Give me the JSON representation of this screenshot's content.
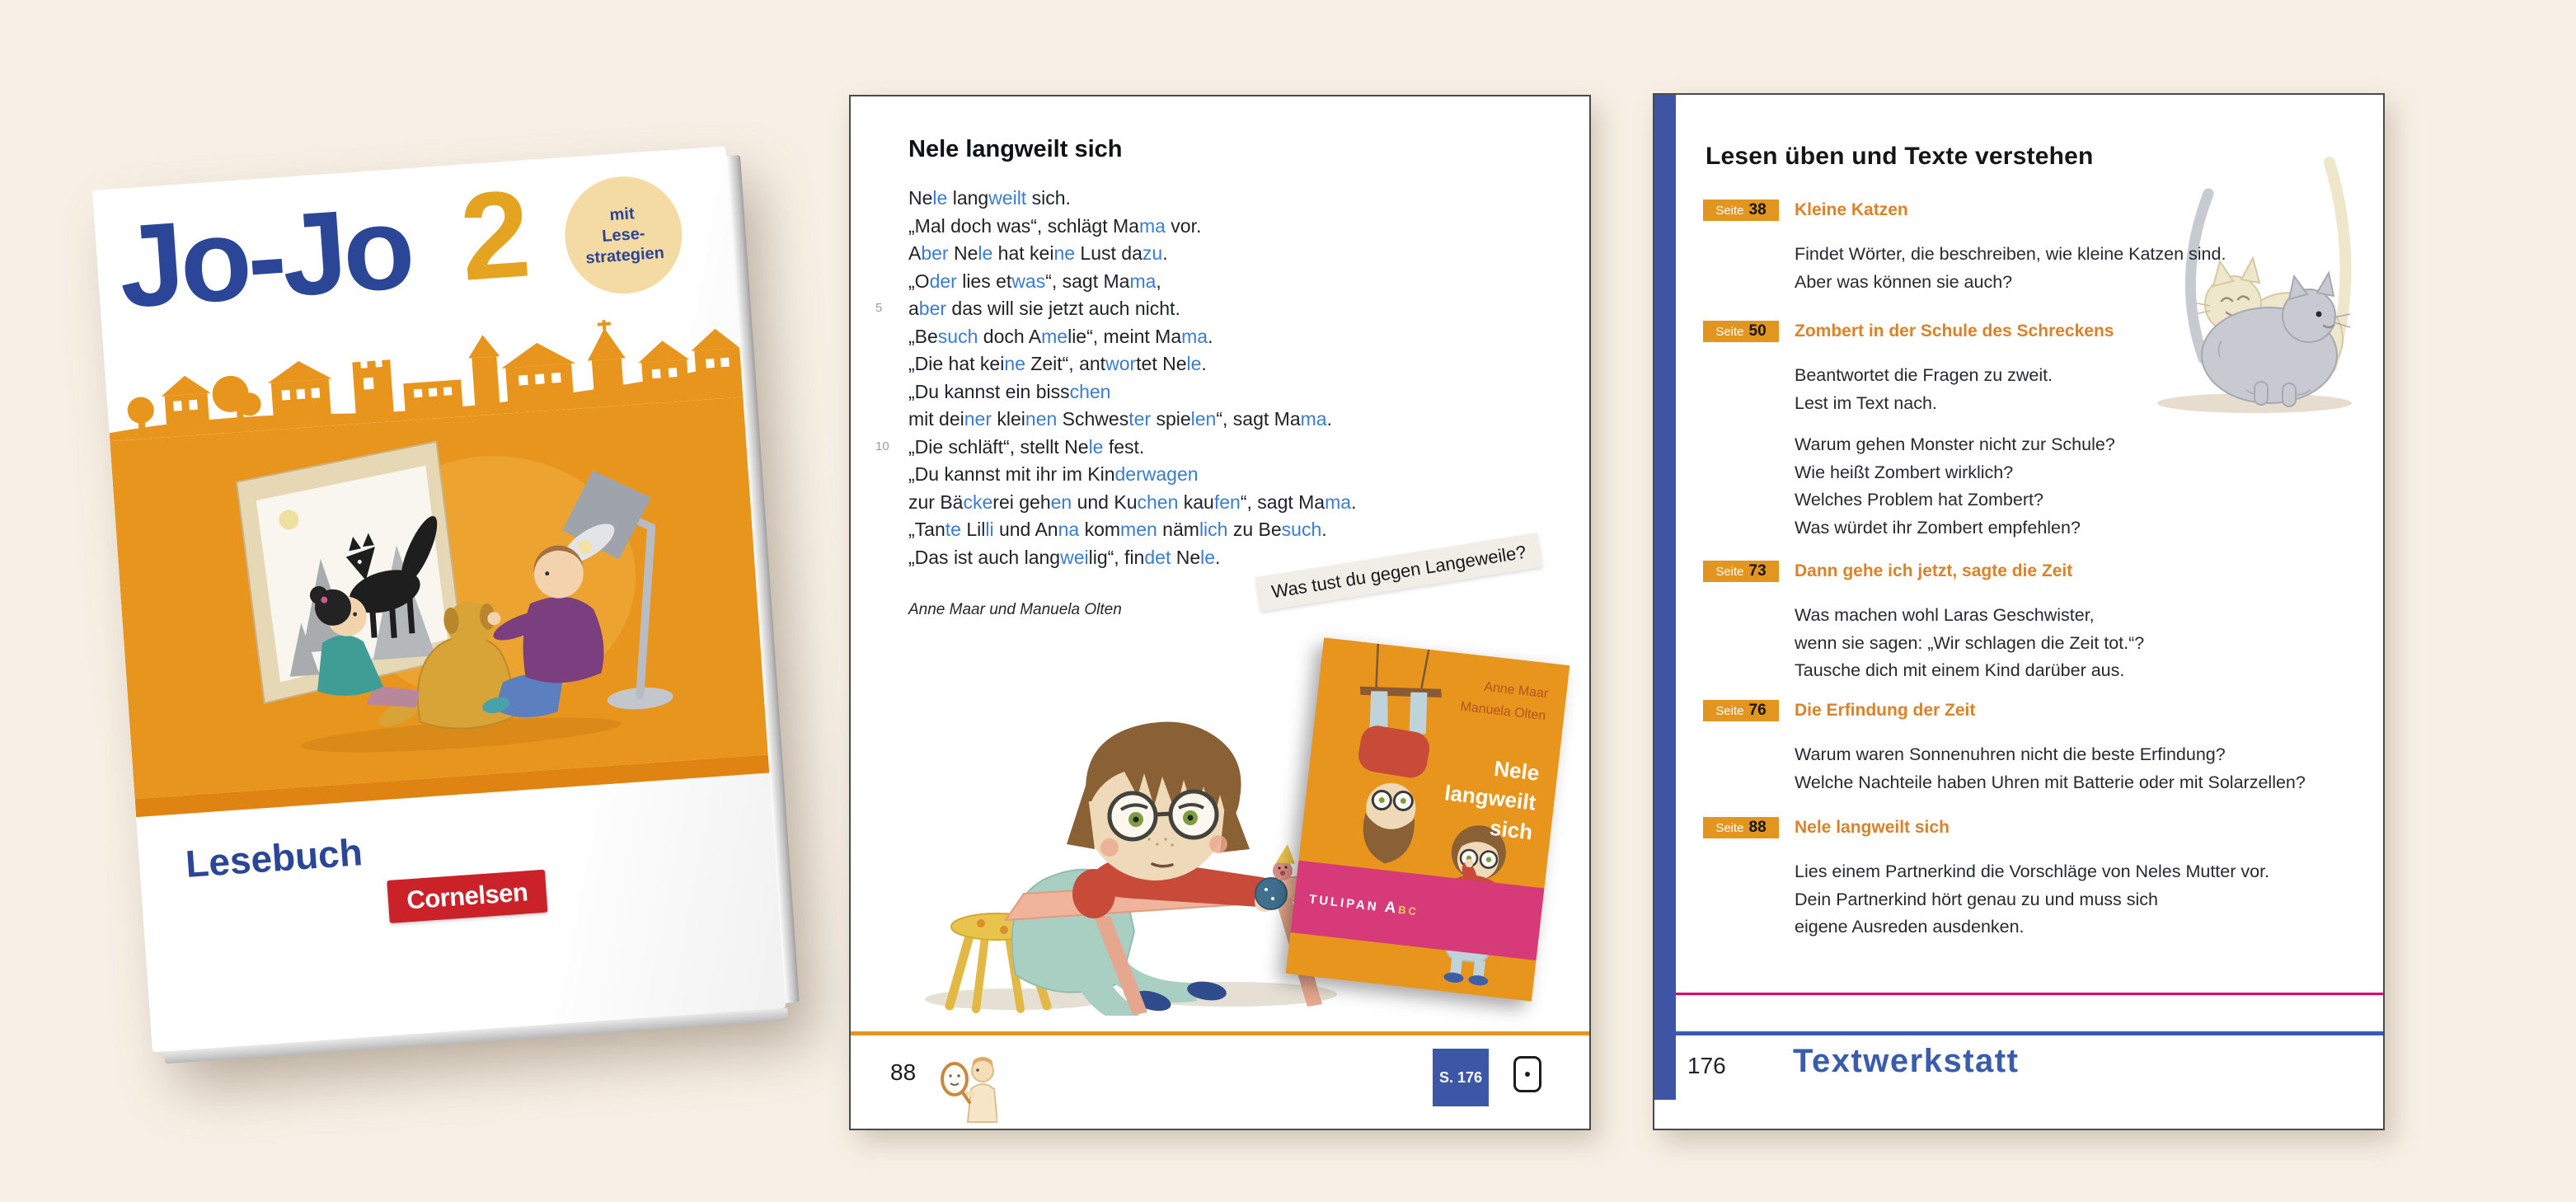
{
  "colors": {
    "background": "#F8F0E6",
    "cover_orange": "#E8951D",
    "cover_stripe": "#DF8312",
    "navy": "#2C4697",
    "gold": "#E5A41F",
    "cornelsen_red": "#CB2229",
    "story_blue": "#3B7CCE",
    "badge_orange": "#E2951F",
    "heading_orange": "#DB8229",
    "bar_blue": "#3E55A5",
    "magenta": "#DD0070",
    "footer_blue": "#3A5CAC",
    "pink_band": "#D63A78"
  },
  "icons": {
    "skyline": "town-skyline-illustration",
    "theater": "shadow-theater-illustration",
    "girl": "bored-girl-at-table-illustration",
    "cats": "two-cats-illustration",
    "mirror": "partner-mirror-icon",
    "note": "note-box-icon"
  },
  "cover": {
    "title": "Jo-Jo",
    "grade": "2",
    "badge_lines": [
      "mit",
      "Lese-",
      "strategien"
    ],
    "subtitle": "Lesebuch",
    "publisher": "Cornelsen"
  },
  "story_page": {
    "title": "Nele langweilt sich",
    "author": "Anne Maar und Manuela Olten",
    "question_label": "Was tust du gegen Langeweile?",
    "page_number": "88",
    "reference_label": "S. 176",
    "margin_numbers": [
      {
        "line": 5,
        "label": "5"
      },
      {
        "line": 10,
        "label": "10"
      }
    ],
    "lines": [
      {
        "segments": [
          {
            "t": "Ne",
            "b": 0
          },
          {
            "t": "le",
            "b": 1
          },
          {
            "t": " lang",
            "b": 0
          },
          {
            "t": "weilt",
            "b": 1
          },
          {
            "t": " sich.",
            "b": 0
          }
        ]
      },
      {
        "segments": [
          {
            "t": "„Mal doch was“, schlägt Ma",
            "b": 0
          },
          {
            "t": "ma",
            "b": 1
          },
          {
            "t": " vor.",
            "b": 0
          }
        ]
      },
      {
        "segments": [
          {
            "t": "A",
            "b": 0
          },
          {
            "t": "ber",
            "b": 1
          },
          {
            "t": " Ne",
            "b": 0
          },
          {
            "t": "le",
            "b": 1
          },
          {
            "t": " hat kei",
            "b": 0
          },
          {
            "t": "ne",
            "b": 1
          },
          {
            "t": " Lust da",
            "b": 0
          },
          {
            "t": "zu",
            "b": 1
          },
          {
            "t": ".",
            "b": 0
          }
        ]
      },
      {
        "segments": [
          {
            "t": "„O",
            "b": 0
          },
          {
            "t": "der",
            "b": 1
          },
          {
            "t": " lies et",
            "b": 0
          },
          {
            "t": "was",
            "b": 1
          },
          {
            "t": "“, sagt Ma",
            "b": 0
          },
          {
            "t": "ma",
            "b": 1
          },
          {
            "t": ",",
            "b": 0
          }
        ]
      },
      {
        "segments": [
          {
            "t": "a",
            "b": 0
          },
          {
            "t": "ber",
            "b": 1
          },
          {
            "t": " das will sie jetzt auch nicht.",
            "b": 0
          }
        ]
      },
      {
        "segments": [
          {
            "t": "„Be",
            "b": 0
          },
          {
            "t": "such",
            "b": 1
          },
          {
            "t": " doch A",
            "b": 0
          },
          {
            "t": "me",
            "b": 1
          },
          {
            "t": "lie“, meint Ma",
            "b": 0
          },
          {
            "t": "ma",
            "b": 1
          },
          {
            "t": ".",
            "b": 0
          }
        ]
      },
      {
        "segments": [
          {
            "t": "„Die hat kei",
            "b": 0
          },
          {
            "t": "ne",
            "b": 1
          },
          {
            "t": " Zeit“, ant",
            "b": 0
          },
          {
            "t": "wor",
            "b": 1
          },
          {
            "t": "tet Ne",
            "b": 0
          },
          {
            "t": "le",
            "b": 1
          },
          {
            "t": ".",
            "b": 0
          }
        ]
      },
      {
        "segments": [
          {
            "t": "„Du kannst ein biss",
            "b": 0
          },
          {
            "t": "chen",
            "b": 1
          }
        ]
      },
      {
        "segments": [
          {
            "t": "mit dei",
            "b": 0
          },
          {
            "t": "ner",
            "b": 1
          },
          {
            "t": " klei",
            "b": 0
          },
          {
            "t": "nen",
            "b": 1
          },
          {
            "t": " Schwes",
            "b": 0
          },
          {
            "t": "ter",
            "b": 1
          },
          {
            "t": " spie",
            "b": 0
          },
          {
            "t": "len",
            "b": 1
          },
          {
            "t": "“, sagt Ma",
            "b": 0
          },
          {
            "t": "ma",
            "b": 1
          },
          {
            "t": ".",
            "b": 0
          }
        ]
      },
      {
        "segments": [
          {
            "t": "„Die schläft“, stellt Ne",
            "b": 0
          },
          {
            "t": "le",
            "b": 1
          },
          {
            "t": " fest.",
            "b": 0
          }
        ]
      },
      {
        "segments": [
          {
            "t": "„Du kannst mit ihr im Kin",
            "b": 0
          },
          {
            "t": "derwagen",
            "b": 1
          }
        ]
      },
      {
        "segments": [
          {
            "t": "zur Bä",
            "b": 0
          },
          {
            "t": "cke",
            "b": 1
          },
          {
            "t": "rei geh",
            "b": 0
          },
          {
            "t": "en",
            "b": 1
          },
          {
            "t": " und Ku",
            "b": 0
          },
          {
            "t": "chen",
            "b": 1
          },
          {
            "t": " kau",
            "b": 0
          },
          {
            "t": "fen",
            "b": 1
          },
          {
            "t": "“, sagt Ma",
            "b": 0
          },
          {
            "t": "ma",
            "b": 1
          },
          {
            "t": ".",
            "b": 0
          }
        ]
      },
      {
        "segments": [
          {
            "t": "„Tan",
            "b": 0
          },
          {
            "t": "te",
            "b": 1
          },
          {
            "t": " Lil",
            "b": 0
          },
          {
            "t": "li",
            "b": 1
          },
          {
            "t": " und An",
            "b": 0
          },
          {
            "t": "na",
            "b": 1
          },
          {
            "t": " kom",
            "b": 0
          },
          {
            "t": "men",
            "b": 1
          },
          {
            "t": " näm",
            "b": 0
          },
          {
            "t": "lich",
            "b": 1
          },
          {
            "t": " zu Be",
            "b": 0
          },
          {
            "t": "such",
            "b": 1
          },
          {
            "t": ".",
            "b": 0
          }
        ]
      },
      {
        "segments": [
          {
            "t": "„Das ist auch lang",
            "b": 0
          },
          {
            "t": "wei",
            "b": 1
          },
          {
            "t": "lig“, fin",
            "b": 0
          },
          {
            "t": "det",
            "b": 1
          },
          {
            "t": " Ne",
            "b": 0
          },
          {
            "t": "le",
            "b": 1
          },
          {
            "t": ".",
            "b": 0
          }
        ]
      }
    ],
    "thumb_cover": {
      "authors": [
        "Anne Maar",
        "Manuela Olten"
      ],
      "title_lines": [
        "Nele",
        "langweilt",
        "sich"
      ],
      "logo_name": "TULIPAN",
      "logo_a": "A",
      "logo_rest": "BC"
    }
  },
  "toc_page": {
    "title": "Lesen üben und Texte verstehen",
    "seite_label": "Seite",
    "sections": [
      {
        "page": "38",
        "heading": "Kleine Katzen",
        "lines": [
          "Findet Wörter, die beschreiben, wie kleine Katzen sind.",
          "Aber was können sie auch?"
        ]
      },
      {
        "page": "50",
        "heading": "Zombert in der Schule des Schreckens",
        "lines": [
          "Beantwortet die Fragen zu zweit.",
          "Lest im Text nach.",
          "",
          "Warum gehen Monster nicht zur Schule?",
          "Wie heißt Zombert wirklich?",
          "Welches Problem hat Zombert?",
          "Was würdet ihr Zombert empfehlen?"
        ]
      },
      {
        "page": "73",
        "heading": "Dann gehe ich jetzt, sagte die Zeit",
        "lines": [
          "Was machen wohl Laras Geschwister,",
          "wenn sie sagen: „Wir schlagen die Zeit tot.“?",
          "Tausche dich mit einem Kind darüber aus."
        ]
      },
      {
        "page": "76",
        "heading": "Die Erfindung der Zeit",
        "lines": [
          "Warum waren Sonnenuhren nicht die beste Erfindung?",
          "Welche Nachteile haben Uhren mit Batterie oder mit Solarzellen?"
        ]
      },
      {
        "page": "88",
        "heading": "Nele langweilt sich",
        "lines": [
          "Lies einem Partnerkind die Vorschläge von Neles Mutter vor.",
          "Dein Partnerkind hört genau zu und muss sich",
          "eigene Ausreden ausdenken."
        ]
      }
    ],
    "page_number": "176",
    "footer_label": "Textwerkstatt"
  }
}
